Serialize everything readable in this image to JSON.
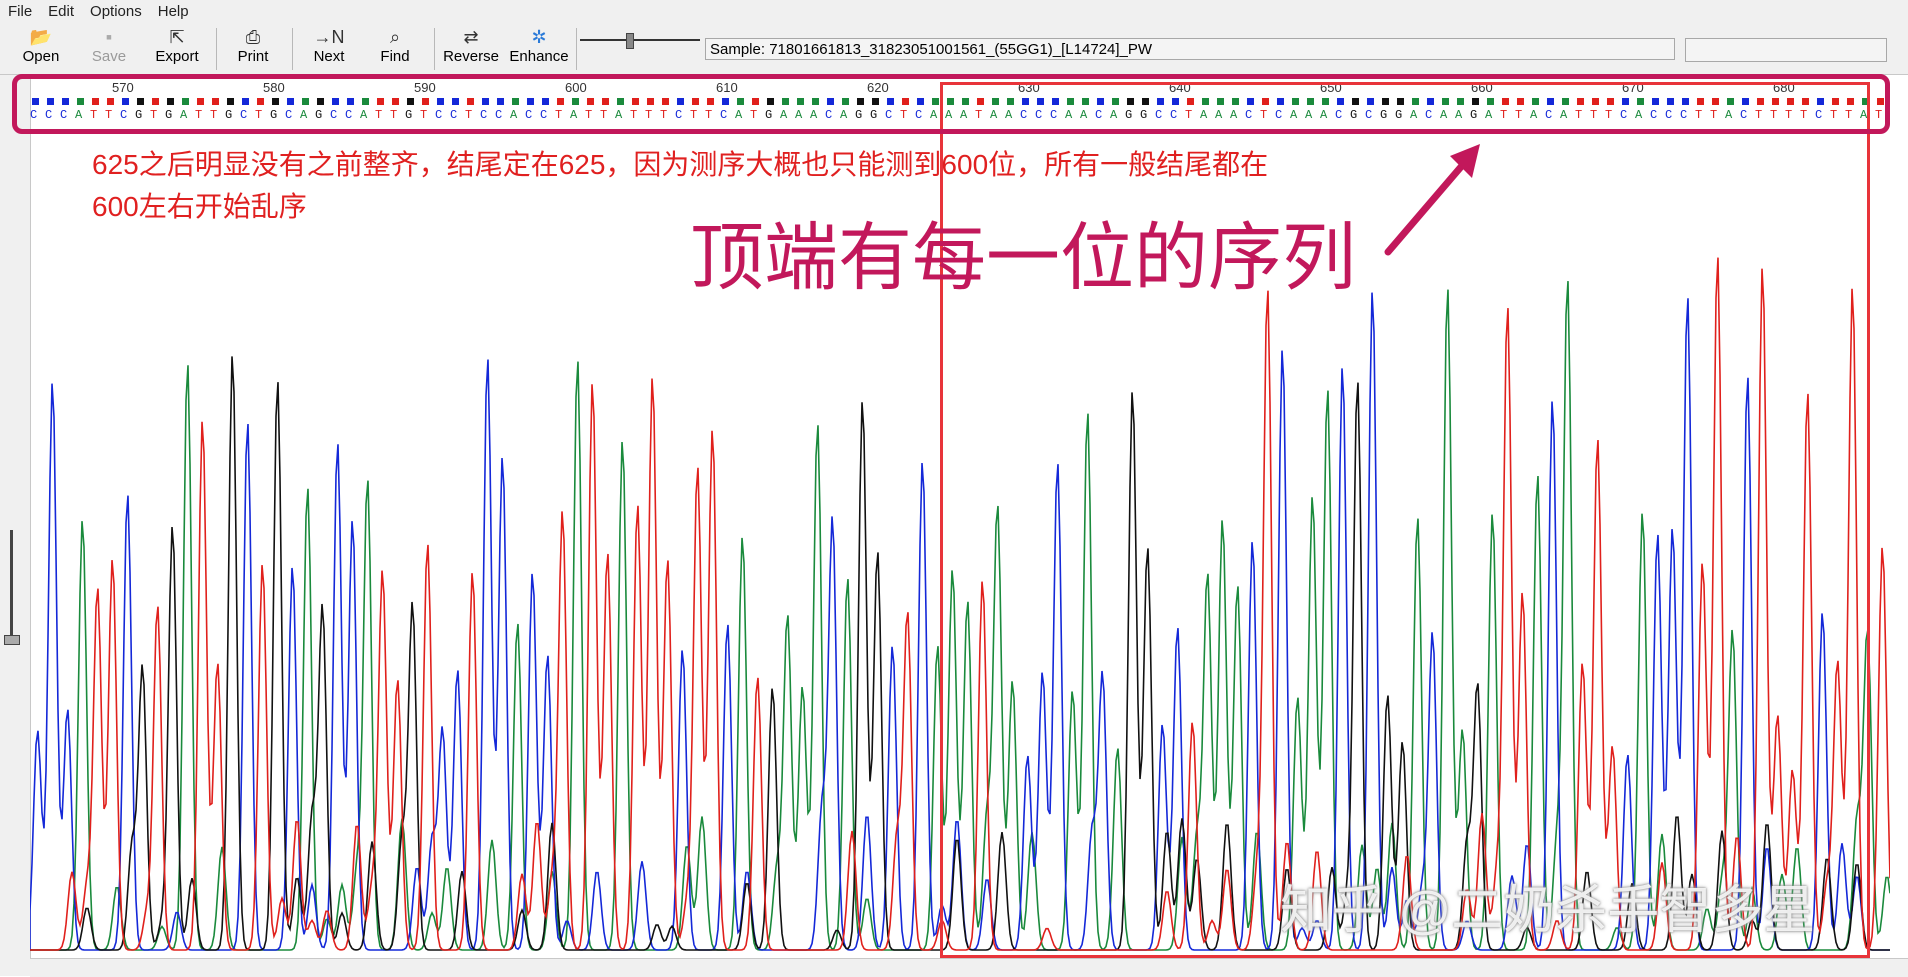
{
  "menu": [
    "File",
    "Edit",
    "Options",
    "Help"
  ],
  "toolbar": {
    "open": "Open",
    "save": "Save",
    "export": "Export",
    "print": "Print",
    "next": "Next",
    "find": "Find",
    "reverse": "Reverse",
    "enhance": "Enhance"
  },
  "sample_label": "Sample: 71801661813_31823051001561_(55GG1)_[L14724]_PW",
  "ruler": [
    "570",
    "580",
    "590",
    "600",
    "610",
    "620",
    "630",
    "640",
    "650",
    "660",
    "670",
    "680"
  ],
  "sequence": "CCCATTCGTGATTGCTGCAGCCATTGTCCTCCACCTATTATTTCTTCATGAAACAGGCTCAAATAACCCAACAGGCCTAAACTCAAACGCGGACAAGATTACATTTCACCCTTACTTTTCTTAT",
  "base_colors": {
    "A": "#1a8a3c",
    "C": "#1428d8",
    "G": "#111111",
    "T": "#e0201c"
  },
  "annotation_note": "625之后明显没有之前整齐，结尾定在625，因为测序大概也只能测到600位，所有一般结尾都在600左右开始乱序",
  "annotation_big": "顶端有每一位的序列",
  "watermark": "知乎 @二奶杀手智多星",
  "colors": {
    "highlight_pink": "#c2185b",
    "highlight_red": "#e8343a"
  }
}
